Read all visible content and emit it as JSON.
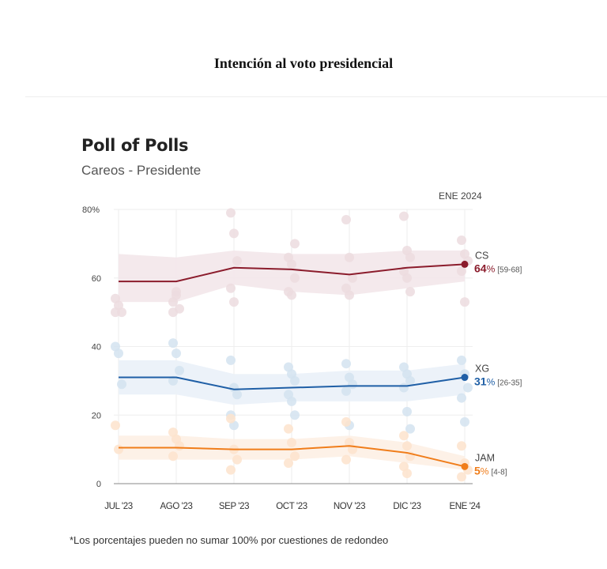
{
  "page": {
    "title": "Intención al voto presidencial",
    "footnote": "*Los porcentajes pueden no sumar 100% por cuestiones de redondeo"
  },
  "chart_data": {
    "type": "line",
    "title": "Poll of Polls",
    "subtitle": "Careos - Presidente",
    "period_label": "ENE 2024",
    "xlabel": "",
    "ylabel": "",
    "ylim": [
      0,
      80
    ],
    "yticks": [
      {
        "value": 0,
        "label": "0"
      },
      {
        "value": 20,
        "label": "20"
      },
      {
        "value": 40,
        "label": "40"
      },
      {
        "value": 60,
        "label": "60"
      },
      {
        "value": 80,
        "label": "80%"
      }
    ],
    "categories": [
      "JUL '23",
      "AGO '23",
      "SEP '23",
      "OCT '23",
      "NOV '23",
      "DIC '23",
      "ENE '24"
    ],
    "grid": true,
    "legend": "right-end-labels",
    "series": [
      {
        "name": "CS",
        "color": "#8b1c2c",
        "band_color": "#f3e7ea",
        "dot_color": "#ecdcdf",
        "values": [
          59,
          59,
          63,
          62.5,
          61,
          63,
          64
        ],
        "band": [
          [
            53,
            67
          ],
          [
            53,
            66
          ],
          [
            58,
            68
          ],
          [
            56,
            67
          ],
          [
            55,
            67
          ],
          [
            57,
            68
          ],
          [
            59,
            68
          ]
        ],
        "end_label": {
          "value": "64",
          "unit": "%",
          "range": "[59-68]"
        },
        "polls": [
          [
            54,
            52,
            50,
            50
          ],
          [
            53,
            55,
            51,
            50,
            56
          ],
          [
            79,
            73,
            65,
            57,
            53
          ],
          [
            66,
            64,
            60,
            56,
            55,
            70
          ],
          [
            77,
            66,
            60,
            57,
            55
          ],
          [
            78,
            68,
            66,
            62,
            60,
            56
          ],
          [
            71,
            67,
            65,
            62,
            53
          ]
        ]
      },
      {
        "name": "XG",
        "color": "#1f5fa6",
        "band_color": "#eaf1f8",
        "dot_color": "#d4e3f0",
        "values": [
          31,
          31,
          27.5,
          28,
          28.5,
          28.5,
          31
        ],
        "band": [
          [
            26,
            36
          ],
          [
            26,
            36
          ],
          [
            23,
            32
          ],
          [
            24,
            32
          ],
          [
            24,
            33
          ],
          [
            24,
            33
          ],
          [
            26,
            35
          ]
        ],
        "end_label": {
          "value": "31",
          "unit": "%",
          "range": "[26-35]"
        },
        "polls": [
          [
            40,
            38,
            29
          ],
          [
            41,
            38,
            33,
            30
          ],
          [
            36,
            28,
            26,
            20,
            17
          ],
          [
            34,
            32,
            30,
            26,
            24,
            20
          ],
          [
            35,
            31,
            29,
            27,
            17
          ],
          [
            34,
            32,
            30,
            28,
            21,
            16
          ],
          [
            36,
            32,
            28,
            25,
            18
          ]
        ]
      },
      {
        "name": "JAM",
        "color": "#f07d1a",
        "band_color": "#fdf0e4",
        "dot_color": "#fde3cc",
        "values": [
          10.5,
          10.5,
          10,
          10,
          11,
          9,
          5
        ],
        "band": [
          [
            7,
            14
          ],
          [
            7,
            14
          ],
          [
            7,
            13
          ],
          [
            7,
            13
          ],
          [
            8,
            14
          ],
          [
            6,
            12
          ],
          [
            4,
            8
          ]
        ],
        "end_label": {
          "value": "5",
          "unit": "%",
          "range": "[4-8]"
        },
        "polls": [
          [
            17,
            10
          ],
          [
            15,
            13,
            11,
            8
          ],
          [
            19,
            10,
            7,
            4
          ],
          [
            16,
            12,
            8,
            6
          ],
          [
            18,
            12,
            10,
            7
          ],
          [
            14,
            11,
            8,
            5,
            3
          ],
          [
            11,
            6,
            4,
            2
          ]
        ]
      }
    ]
  }
}
